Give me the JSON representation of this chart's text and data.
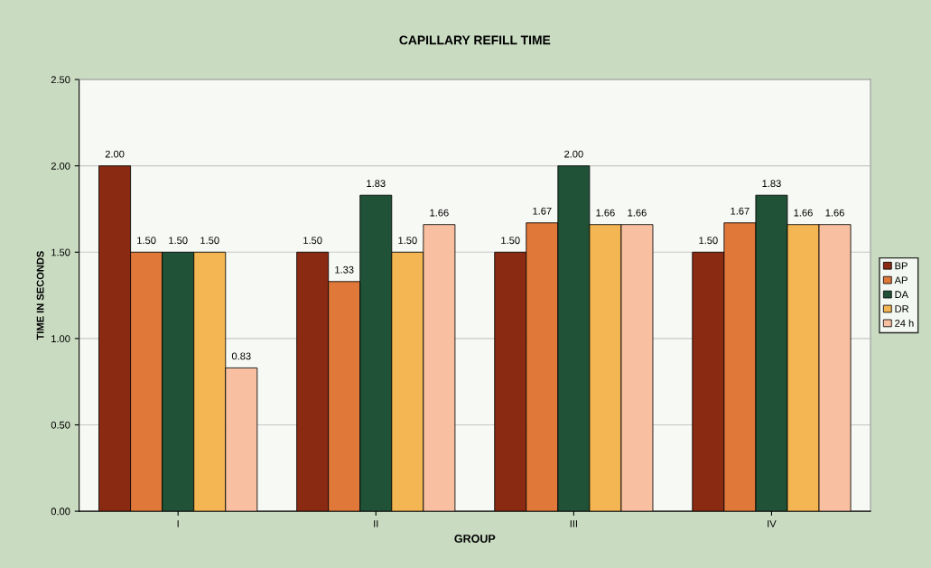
{
  "chart_data": {
    "type": "bar",
    "title": "CAPILLARY REFILL TIME",
    "xlabel": "GROUP",
    "ylabel": "TIME IN SECONDS",
    "categories": [
      "I",
      "II",
      "III",
      "IV"
    ],
    "series": [
      {
        "name": "BP",
        "color": "#8b2a12",
        "values": [
          2.0,
          1.5,
          1.5,
          1.5
        ],
        "value_labels": [
          "2.00",
          "1.50",
          "1.50",
          "1.50"
        ]
      },
      {
        "name": "AP",
        "color": "#e0783a",
        "values": [
          1.5,
          1.33,
          1.67,
          1.67
        ],
        "value_labels": [
          "1.50",
          "1.33",
          "1.67",
          "1.67"
        ]
      },
      {
        "name": "DA",
        "color": "#1f5236",
        "values": [
          1.5,
          1.83,
          2.0,
          1.83
        ],
        "value_labels": [
          "1.50",
          "1.83",
          "2.00",
          "1.83"
        ]
      },
      {
        "name": "DR",
        "color": "#f4b652",
        "values": [
          1.5,
          1.5,
          1.66,
          1.66
        ],
        "value_labels": [
          "1.50",
          "1.50",
          "1.66",
          "1.66"
        ]
      },
      {
        "name": "24 h",
        "color": "#f8c0a0",
        "values": [
          0.83,
          1.66,
          1.66,
          1.66
        ],
        "value_labels": [
          "0.83",
          "1.66",
          "1.66",
          "1.66"
        ]
      }
    ],
    "ylim": [
      0,
      2.5
    ],
    "yticks": [
      {
        "value": 0,
        "label": "0.00"
      },
      {
        "value": 0.5,
        "label": "0.50"
      },
      {
        "value": 1.0,
        "label": "1.00"
      },
      {
        "value": 1.5,
        "label": "1.50"
      },
      {
        "value": 2.0,
        "label": "2.00"
      },
      {
        "value": 2.5,
        "label": "2.50"
      }
    ],
    "grid": "y",
    "legend": "right"
  }
}
